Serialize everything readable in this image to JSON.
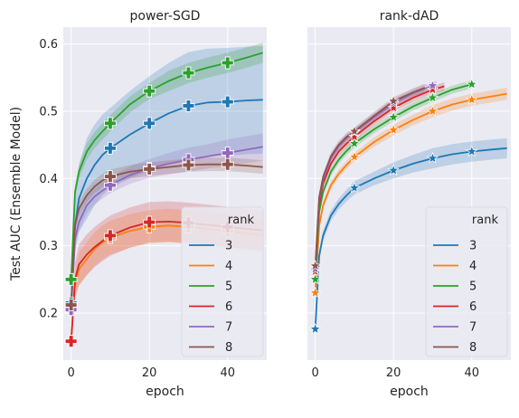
{
  "chart_data": {
    "type": "line",
    "ylabel": "Test AUC (Ensemble Model)",
    "xlabel": "epoch",
    "xlim": [
      -2,
      50
    ],
    "ylim": [
      0.13,
      0.625
    ],
    "xticks": [
      0,
      20,
      40
    ],
    "yticks": [
      0.2,
      0.3,
      0.4,
      0.5,
      0.6
    ],
    "ytick_labels": [
      "0.2",
      "0.3",
      "0.4",
      "0.5",
      "0.6"
    ],
    "grid": true,
    "legend_title": "rank",
    "legend_position": "lower-right",
    "colors": {
      "3": "#1f77b4",
      "4": "#ff7f0e",
      "5": "#2ca02c",
      "6": "#d62728",
      "7": "#9467bd",
      "8": "#8c564b"
    },
    "panels": [
      {
        "title": "power-SGD",
        "marker": "plus",
        "series": [
          {
            "name": "3",
            "x": [
              0,
              1,
              2,
              4,
              6,
              8,
              10,
              15,
              20,
              25,
              30,
              35,
              40,
              45,
              49
            ],
            "y": [
              0.215,
              0.33,
              0.37,
              0.4,
              0.42,
              0.435,
              0.445,
              0.465,
              0.482,
              0.497,
              0.508,
              0.513,
              0.514,
              0.516,
              0.517
            ],
            "band": [
              0.02,
              0.04,
              0.05,
              0.06,
              0.06,
              0.06,
              0.06,
              0.065,
              0.07,
              0.075,
              0.08,
              0.08,
              0.08,
              0.08,
              0.08
            ],
            "markers_x": [
              0,
              10,
              20,
              30,
              40
            ]
          },
          {
            "name": "4",
            "x": [
              0,
              1,
              2,
              4,
              6,
              8,
              10,
              15,
              20,
              25,
              30,
              35,
              40,
              45,
              49
            ],
            "y": [
              0.158,
              0.24,
              0.265,
              0.28,
              0.295,
              0.305,
              0.312,
              0.322,
              0.328,
              0.33,
              0.328,
              0.325,
              0.322,
              0.318,
              0.315
            ],
            "band": [
              0.01,
              0.02,
              0.025,
              0.025,
              0.025,
              0.025,
              0.025,
              0.025,
              0.025,
              0.025,
              0.025,
              0.025,
              0.025,
              0.025,
              0.025
            ],
            "markers_x": [
              0,
              10,
              20,
              30,
              40
            ]
          },
          {
            "name": "5",
            "x": [
              0,
              1,
              2,
              4,
              6,
              8,
              10,
              15,
              20,
              25,
              30,
              35,
              40,
              45,
              49
            ],
            "y": [
              0.25,
              0.38,
              0.41,
              0.44,
              0.457,
              0.47,
              0.482,
              0.51,
              0.53,
              0.545,
              0.557,
              0.565,
              0.572,
              0.58,
              0.587
            ],
            "band": [
              0.01,
              0.01,
              0.01,
              0.012,
              0.012,
              0.012,
              0.012,
              0.012,
              0.012,
              0.015,
              0.015,
              0.015,
              0.015,
              0.015,
              0.015
            ],
            "markers_x": [
              0,
              10,
              20,
              30,
              40
            ]
          },
          {
            "name": "6",
            "x": [
              0,
              1,
              2,
              4,
              6,
              8,
              10,
              15,
              20,
              25,
              30,
              35,
              40,
              45,
              49
            ],
            "y": [
              0.158,
              0.25,
              0.272,
              0.287,
              0.298,
              0.307,
              0.315,
              0.327,
              0.335,
              0.336,
              0.334,
              0.331,
              0.328,
              0.325,
              0.323
            ],
            "band": [
              0.01,
              0.025,
              0.03,
              0.03,
              0.03,
              0.03,
              0.03,
              0.03,
              0.03,
              0.03,
              0.03,
              0.03,
              0.03,
              0.03,
              0.03
            ],
            "markers_x": [
              0,
              10,
              20,
              30,
              40
            ]
          },
          {
            "name": "7",
            "x": [
              0,
              1,
              2,
              4,
              6,
              8,
              10,
              15,
              20,
              25,
              30,
              35,
              40,
              45,
              49
            ],
            "y": [
              0.205,
              0.31,
              0.335,
              0.36,
              0.373,
              0.382,
              0.39,
              0.405,
              0.415,
              0.422,
              0.428,
              0.433,
              0.438,
              0.443,
              0.447
            ],
            "band": [
              0.01,
              0.012,
              0.012,
              0.012,
              0.012,
              0.012,
              0.012,
              0.013,
              0.014,
              0.016,
              0.018,
              0.018,
              0.02,
              0.02,
              0.02
            ],
            "markers_x": [
              0,
              10,
              20,
              30,
              40
            ]
          },
          {
            "name": "8",
            "x": [
              0,
              1,
              2,
              4,
              6,
              8,
              10,
              15,
              20,
              25,
              30,
              35,
              40,
              45,
              49
            ],
            "y": [
              0.212,
              0.33,
              0.355,
              0.375,
              0.388,
              0.397,
              0.403,
              0.41,
              0.414,
              0.417,
              0.42,
              0.421,
              0.421,
              0.419,
              0.417
            ],
            "band": [
              0.008,
              0.01,
              0.01,
              0.01,
              0.01,
              0.01,
              0.01,
              0.01,
              0.01,
              0.01,
              0.01,
              0.01,
              0.01,
              0.01,
              0.01
            ],
            "markers_x": [
              0,
              10,
              20,
              30,
              40
            ]
          }
        ]
      },
      {
        "title": "rank-dAD",
        "marker": "star",
        "series": [
          {
            "name": "3",
            "x": [
              0,
              1,
              2,
              4,
              6,
              8,
              10,
              15,
              20,
              25,
              30,
              35,
              40,
              45,
              49
            ],
            "y": [
              0.176,
              0.285,
              0.315,
              0.345,
              0.362,
              0.375,
              0.386,
              0.4,
              0.412,
              0.422,
              0.43,
              0.436,
              0.44,
              0.443,
              0.445
            ],
            "band": [
              0.005,
              0.008,
              0.008,
              0.008,
              0.008,
              0.009,
              0.01,
              0.01,
              0.012,
              0.013,
              0.015,
              0.015,
              0.015,
              0.015,
              0.015
            ],
            "markers_x": [
              0,
              10,
              20,
              30,
              40
            ]
          },
          {
            "name": "4",
            "x": [
              0,
              1,
              2,
              4,
              6,
              8,
              10,
              15,
              20,
              25,
              30,
              35,
              40,
              45,
              49
            ],
            "y": [
              0.23,
              0.33,
              0.36,
              0.39,
              0.407,
              0.42,
              0.432,
              0.454,
              0.472,
              0.487,
              0.5,
              0.51,
              0.517,
              0.522,
              0.526
            ],
            "band": [
              0.005,
              0.006,
              0.006,
              0.006,
              0.006,
              0.006,
              0.006,
              0.007,
              0.008,
              0.008,
              0.009,
              0.009,
              0.009,
              0.009,
              0.009
            ],
            "markers_x": [
              0,
              10,
              20,
              30,
              40
            ]
          },
          {
            "name": "5",
            "x": [
              0,
              1,
              2,
              4,
              6,
              8,
              10,
              15,
              20,
              25,
              30,
              35,
              40
            ],
            "y": [
              0.25,
              0.35,
              0.38,
              0.41,
              0.428,
              0.441,
              0.452,
              0.473,
              0.491,
              0.507,
              0.52,
              0.532,
              0.54
            ],
            "band": [
              0.005,
              0.006,
              0.006,
              0.006,
              0.006,
              0.006,
              0.006,
              0.006,
              0.006,
              0.006,
              0.006,
              0.006,
              0.006
            ],
            "markers_x": [
              0,
              10,
              20,
              30,
              40
            ]
          },
          {
            "name": "6",
            "x": [
              0,
              1,
              2,
              4,
              6,
              8,
              10,
              15,
              20,
              25,
              30,
              33
            ],
            "y": [
              0.262,
              0.362,
              0.392,
              0.422,
              0.44,
              0.452,
              0.462,
              0.485,
              0.505,
              0.52,
              0.532,
              0.537
            ],
            "band": [
              0.005,
              0.006,
              0.006,
              0.006,
              0.006,
              0.006,
              0.006,
              0.006,
              0.006,
              0.006,
              0.006,
              0.006
            ],
            "markers_x": [
              0,
              10,
              20,
              30
            ]
          },
          {
            "name": "7",
            "x": [
              0,
              1,
              2,
              4,
              6,
              8,
              10,
              15,
              20,
              25,
              30,
              31
            ],
            "y": [
              0.265,
              0.368,
              0.398,
              0.43,
              0.448,
              0.46,
              0.469,
              0.491,
              0.512,
              0.527,
              0.538,
              0.539
            ],
            "band": [
              0.005,
              0.006,
              0.006,
              0.006,
              0.006,
              0.006,
              0.006,
              0.006,
              0.006,
              0.006,
              0.006,
              0.006
            ],
            "markers_x": [
              0,
              10,
              20,
              30
            ]
          },
          {
            "name": "8",
            "x": [
              0,
              1,
              2,
              4,
              6,
              8,
              10,
              15,
              20,
              25,
              28
            ],
            "y": [
              0.27,
              0.372,
              0.402,
              0.433,
              0.45,
              0.462,
              0.47,
              0.493,
              0.515,
              0.528,
              0.535
            ],
            "band": [
              0.005,
              0.006,
              0.006,
              0.006,
              0.006,
              0.006,
              0.006,
              0.006,
              0.006,
              0.006,
              0.006
            ],
            "markers_x": [
              0,
              10,
              20
            ]
          }
        ]
      }
    ]
  }
}
